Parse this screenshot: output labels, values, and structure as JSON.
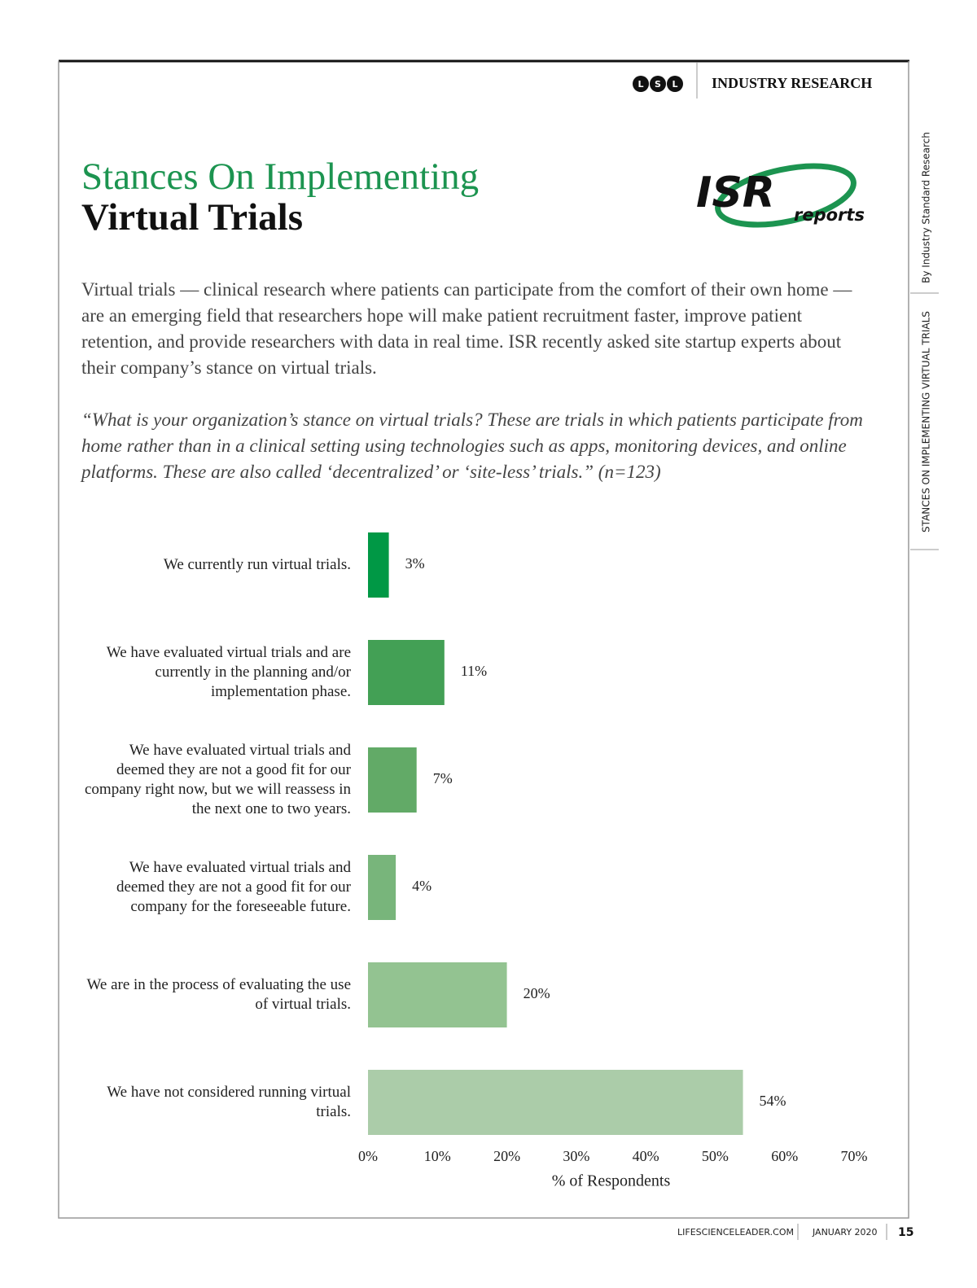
{
  "header": {
    "logo_letters": [
      "L",
      "S",
      "L"
    ],
    "section": "INDUSTRY RESEARCH"
  },
  "side": {
    "by": "By Industry Standard Research",
    "topic": "STANCES ON IMPLEMENTING VIRTUAL TRIALS"
  },
  "title": {
    "line1": "Stances On Implementing",
    "line2": "Virtual Trials"
  },
  "logo": {
    "main": "ISR",
    "sub": "reports"
  },
  "intro": "Virtual trials — clinical research where patients can participate from the comfort of their own home — are an emerging field that researchers hope will make patient recruitment faster, improve patient retention, and provide researchers with data in real time. ISR recently asked site startup experts about their company’s stance on virtual trials.",
  "question": "“What is your organization’s stance on virtual trials? These are trials in which patients participate from home rather than in a clinical setting using technologies such as apps, monitoring devices, and online platforms. These are also called ‘decentralized’ or ‘site-less’ trials.” (n=123)",
  "chart_data": {
    "type": "bar",
    "orientation": "horizontal",
    "categories": [
      "We currently run virtual trials.",
      "We have evaluated virtual trials and are currently in the planning and/or implementation phase.",
      "We have evaluated virtual trials and deemed they are not a good fit for our company right now, but we will reassess in the next one to two years.",
      "We have evaluated virtual trials and deemed they are not a good fit for our company for the foreseeable future.",
      "We are in the process of evaluating the use of virtual trials.",
      "We have not considered running virtual trials."
    ],
    "values": [
      3,
      11,
      7,
      4,
      20,
      54
    ],
    "value_labels": [
      "3%",
      "11%",
      "7%",
      "4%",
      "20%",
      "54%"
    ],
    "colors": [
      "#009845",
      "#43a055",
      "#62aa67",
      "#78b57b",
      "#93c391",
      "#abcca9"
    ],
    "xlim": [
      0,
      70
    ],
    "xticks": [
      {
        "value": 0,
        "label": "0%"
      },
      {
        "value": 10,
        "label": "10%"
      },
      {
        "value": 20,
        "label": "20%"
      },
      {
        "value": 30,
        "label": "30%"
      },
      {
        "value": 40,
        "label": "40%"
      },
      {
        "value": 50,
        "label": "50%"
      },
      {
        "value": 60,
        "label": "60%"
      },
      {
        "value": 70,
        "label": "70%"
      }
    ],
    "xlabel": "% of Respondents",
    "grid": false
  },
  "footer": {
    "site": "LIFESCIENCELEADER.COM",
    "date": "JANUARY 2020",
    "page": "15"
  }
}
